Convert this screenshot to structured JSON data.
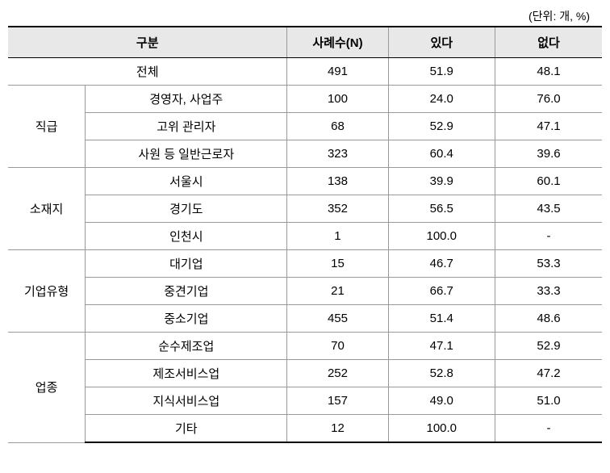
{
  "unit_label": "(단위: 개, %)",
  "headers": {
    "category": "구분",
    "count": "사례수(N)",
    "yes": "있다",
    "no": "없다"
  },
  "total": {
    "label": "전체",
    "count": "491",
    "yes": "51.9",
    "no": "48.1"
  },
  "groups": [
    {
      "name": "직급",
      "rows": [
        {
          "label": "경영자, 사업주",
          "count": "100",
          "yes": "24.0",
          "no": "76.0"
        },
        {
          "label": "고위 관리자",
          "count": "68",
          "yes": "52.9",
          "no": "47.1"
        },
        {
          "label": "사원 등 일반근로자",
          "count": "323",
          "yes": "60.4",
          "no": "39.6"
        }
      ]
    },
    {
      "name": "소재지",
      "rows": [
        {
          "label": "서울시",
          "count": "138",
          "yes": "39.9",
          "no": "60.1"
        },
        {
          "label": "경기도",
          "count": "352",
          "yes": "56.5",
          "no": "43.5"
        },
        {
          "label": "인천시",
          "count": "1",
          "yes": "100.0",
          "no": "-"
        }
      ]
    },
    {
      "name": "기업유형",
      "rows": [
        {
          "label": "대기업",
          "count": "15",
          "yes": "46.7",
          "no": "53.3"
        },
        {
          "label": "중견기업",
          "count": "21",
          "yes": "66.7",
          "no": "33.3"
        },
        {
          "label": "중소기업",
          "count": "455",
          "yes": "51.4",
          "no": "48.6"
        }
      ]
    },
    {
      "name": "업종",
      "rows": [
        {
          "label": "순수제조업",
          "count": "70",
          "yes": "47.1",
          "no": "52.9"
        },
        {
          "label": "제조서비스업",
          "count": "252",
          "yes": "52.8",
          "no": "47.2"
        },
        {
          "label": "지식서비스업",
          "count": "157",
          "yes": "49.0",
          "no": "51.0"
        },
        {
          "label": "기타",
          "count": "12",
          "yes": "100.0",
          "no": "-"
        }
      ]
    }
  ],
  "table_styling": {
    "header_bg": "#e8e8e8",
    "border_main": "#000000",
    "border_cell": "#999999",
    "font_size": 15,
    "col_widths": [
      "13%",
      "34%",
      "17%",
      "18%",
      "18%"
    ]
  }
}
